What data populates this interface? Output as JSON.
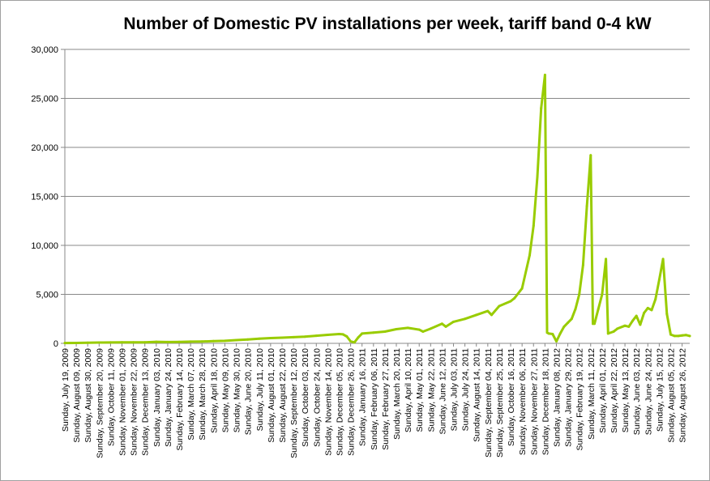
{
  "chart_data": {
    "type": "line",
    "title": "Number of Domestic PV installations per week, tariff band 0-4 kW",
    "xlabel": "",
    "ylabel": "",
    "ylim": [
      0,
      30000
    ],
    "y_ticks": [
      "0",
      "5,000",
      "10,000",
      "15,000",
      "20,000",
      "25,000",
      "30,000"
    ],
    "x_tick_labels": [
      "Sunday, July 19, 2009",
      "Sunday, August 09, 2009",
      "Sunday, August 30, 2009",
      "Sunday, September 20, 2009",
      "Sunday, October 11, 2009",
      "Sunday, November 01, 2009",
      "Sunday, November 22, 2009",
      "Sunday, December 13, 2009",
      "Sunday, January 03, 2010",
      "Sunday, January 24, 2010",
      "Sunday, February 14, 2010",
      "Sunday, March 07, 2010",
      "Sunday, March 28, 2010",
      "Sunday, April 18, 2010",
      "Sunday, May 09, 2010",
      "Sunday, May 30, 2010",
      "Sunday, June 20, 2010",
      "Sunday, July 11, 2010",
      "Sunday, August 01, 2010",
      "Sunday, August 22, 2010",
      "Sunday, September 12, 2010",
      "Sunday, October 03, 2010",
      "Sunday, October 24, 2010",
      "Sunday, November 14, 2010",
      "Sunday, December 05, 2010",
      "Sunday, December 26, 2010",
      "Sunday, January 16, 2011",
      "Sunday, February 06, 2011",
      "Sunday, February 27, 2011",
      "Sunday, March 20, 2011",
      "Sunday, April 10, 2011",
      "Sunday, May 01, 2011",
      "Sunday, May 22, 2011",
      "Sunday, June 12, 2011",
      "Sunday, July 03, 2011",
      "Sunday, July 24, 2011",
      "Sunday, August 14, 2011",
      "Sunday, September 04, 2011",
      "Sunday, September 25, 2011",
      "Sunday, October 16, 2011",
      "Sunday, November 06, 2011",
      "Sunday, November 27, 2011",
      "Sunday, December 18, 2011",
      "Sunday, January 08, 2012",
      "Sunday, January 29, 2012",
      "Sunday, February 19, 2012",
      "Sunday, March 11, 2012",
      "Sunday, April 01, 2012",
      "Sunday, April 22, 2012",
      "Sunday, May 13, 2012",
      "Sunday, June 03, 2012",
      "Sunday, June 24, 2012",
      "Sunday, July 15, 2012",
      "Sunday, August 05, 2012",
      "Sunday, August 26, 2012"
    ],
    "grid": true,
    "legend": "none",
    "line_color": "#99cc00",
    "series": [
      {
        "points": [
          [
            "2009-07-19",
            30
          ],
          [
            "2009-08-09",
            40
          ],
          [
            "2009-08-30",
            60
          ],
          [
            "2009-09-20",
            80
          ],
          [
            "2009-10-11",
            90
          ],
          [
            "2009-11-01",
            100
          ],
          [
            "2009-11-22",
            110
          ],
          [
            "2009-12-13",
            110
          ],
          [
            "2010-01-03",
            160
          ],
          [
            "2010-01-24",
            130
          ],
          [
            "2010-02-14",
            140
          ],
          [
            "2010-03-07",
            170
          ],
          [
            "2010-03-28",
            190
          ],
          [
            "2010-04-18",
            220
          ],
          [
            "2010-05-09",
            260
          ],
          [
            "2010-05-30",
            330
          ],
          [
            "2010-06-20",
            400
          ],
          [
            "2010-07-11",
            480
          ],
          [
            "2010-08-01",
            540
          ],
          [
            "2010-08-22",
            580
          ],
          [
            "2010-09-12",
            630
          ],
          [
            "2010-10-03",
            690
          ],
          [
            "2010-10-24",
            780
          ],
          [
            "2010-11-14",
            870
          ],
          [
            "2010-12-05",
            950
          ],
          [
            "2010-12-12",
            920
          ],
          [
            "2010-12-19",
            700
          ],
          [
            "2010-12-26",
            200
          ],
          [
            "2011-01-02",
            100
          ],
          [
            "2011-01-09",
            600
          ],
          [
            "2011-01-16",
            1000
          ],
          [
            "2011-02-06",
            1100
          ],
          [
            "2011-02-27",
            1200
          ],
          [
            "2011-03-20",
            1450
          ],
          [
            "2011-04-10",
            1580
          ],
          [
            "2011-05-01",
            1400
          ],
          [
            "2011-05-08",
            1200
          ],
          [
            "2011-05-22",
            1500
          ],
          [
            "2011-06-12",
            2000
          ],
          [
            "2011-06-19",
            1700
          ],
          [
            "2011-07-03",
            2200
          ],
          [
            "2011-07-24",
            2500
          ],
          [
            "2011-08-14",
            2900
          ],
          [
            "2011-09-04",
            3300
          ],
          [
            "2011-09-11",
            2900
          ],
          [
            "2011-09-25",
            3800
          ],
          [
            "2011-10-16",
            4300
          ],
          [
            "2011-10-23",
            4600
          ],
          [
            "2011-11-06",
            5600
          ],
          [
            "2011-11-20",
            9000
          ],
          [
            "2011-11-27",
            12000
          ],
          [
            "2011-12-04",
            17000
          ],
          [
            "2011-12-11",
            24000
          ],
          [
            "2011-12-18",
            27400
          ],
          [
            "2011-12-22",
            1100
          ],
          [
            "2011-12-25",
            1000
          ],
          [
            "2012-01-01",
            950
          ],
          [
            "2012-01-08",
            200
          ],
          [
            "2012-01-15",
            1000
          ],
          [
            "2012-01-22",
            1700
          ],
          [
            "2012-01-29",
            2100
          ],
          [
            "2012-02-05",
            2500
          ],
          [
            "2012-02-12",
            3500
          ],
          [
            "2012-02-19",
            5000
          ],
          [
            "2012-02-26",
            8000
          ],
          [
            "2012-03-04",
            14000
          ],
          [
            "2012-03-11",
            19200
          ],
          [
            "2012-03-15",
            2000
          ],
          [
            "2012-03-18",
            2000
          ],
          [
            "2012-03-25",
            3500
          ],
          [
            "2012-04-01",
            5000
          ],
          [
            "2012-04-08",
            8600
          ],
          [
            "2012-04-12",
            1000
          ],
          [
            "2012-04-22",
            1200
          ],
          [
            "2012-04-29",
            1500
          ],
          [
            "2012-05-13",
            1800
          ],
          [
            "2012-05-20",
            1700
          ],
          [
            "2012-05-27",
            2300
          ],
          [
            "2012-06-03",
            2800
          ],
          [
            "2012-06-10",
            1900
          ],
          [
            "2012-06-17",
            3100
          ],
          [
            "2012-06-24",
            3600
          ],
          [
            "2012-07-01",
            3400
          ],
          [
            "2012-07-08",
            4500
          ],
          [
            "2012-07-15",
            6500
          ],
          [
            "2012-07-22",
            8600
          ],
          [
            "2012-07-29",
            3000
          ],
          [
            "2012-08-05",
            900
          ],
          [
            "2012-08-12",
            750
          ],
          [
            "2012-08-19",
            750
          ],
          [
            "2012-08-26",
            800
          ],
          [
            "2012-09-02",
            850
          ],
          [
            "2012-09-09",
            750
          ]
        ]
      }
    ]
  }
}
